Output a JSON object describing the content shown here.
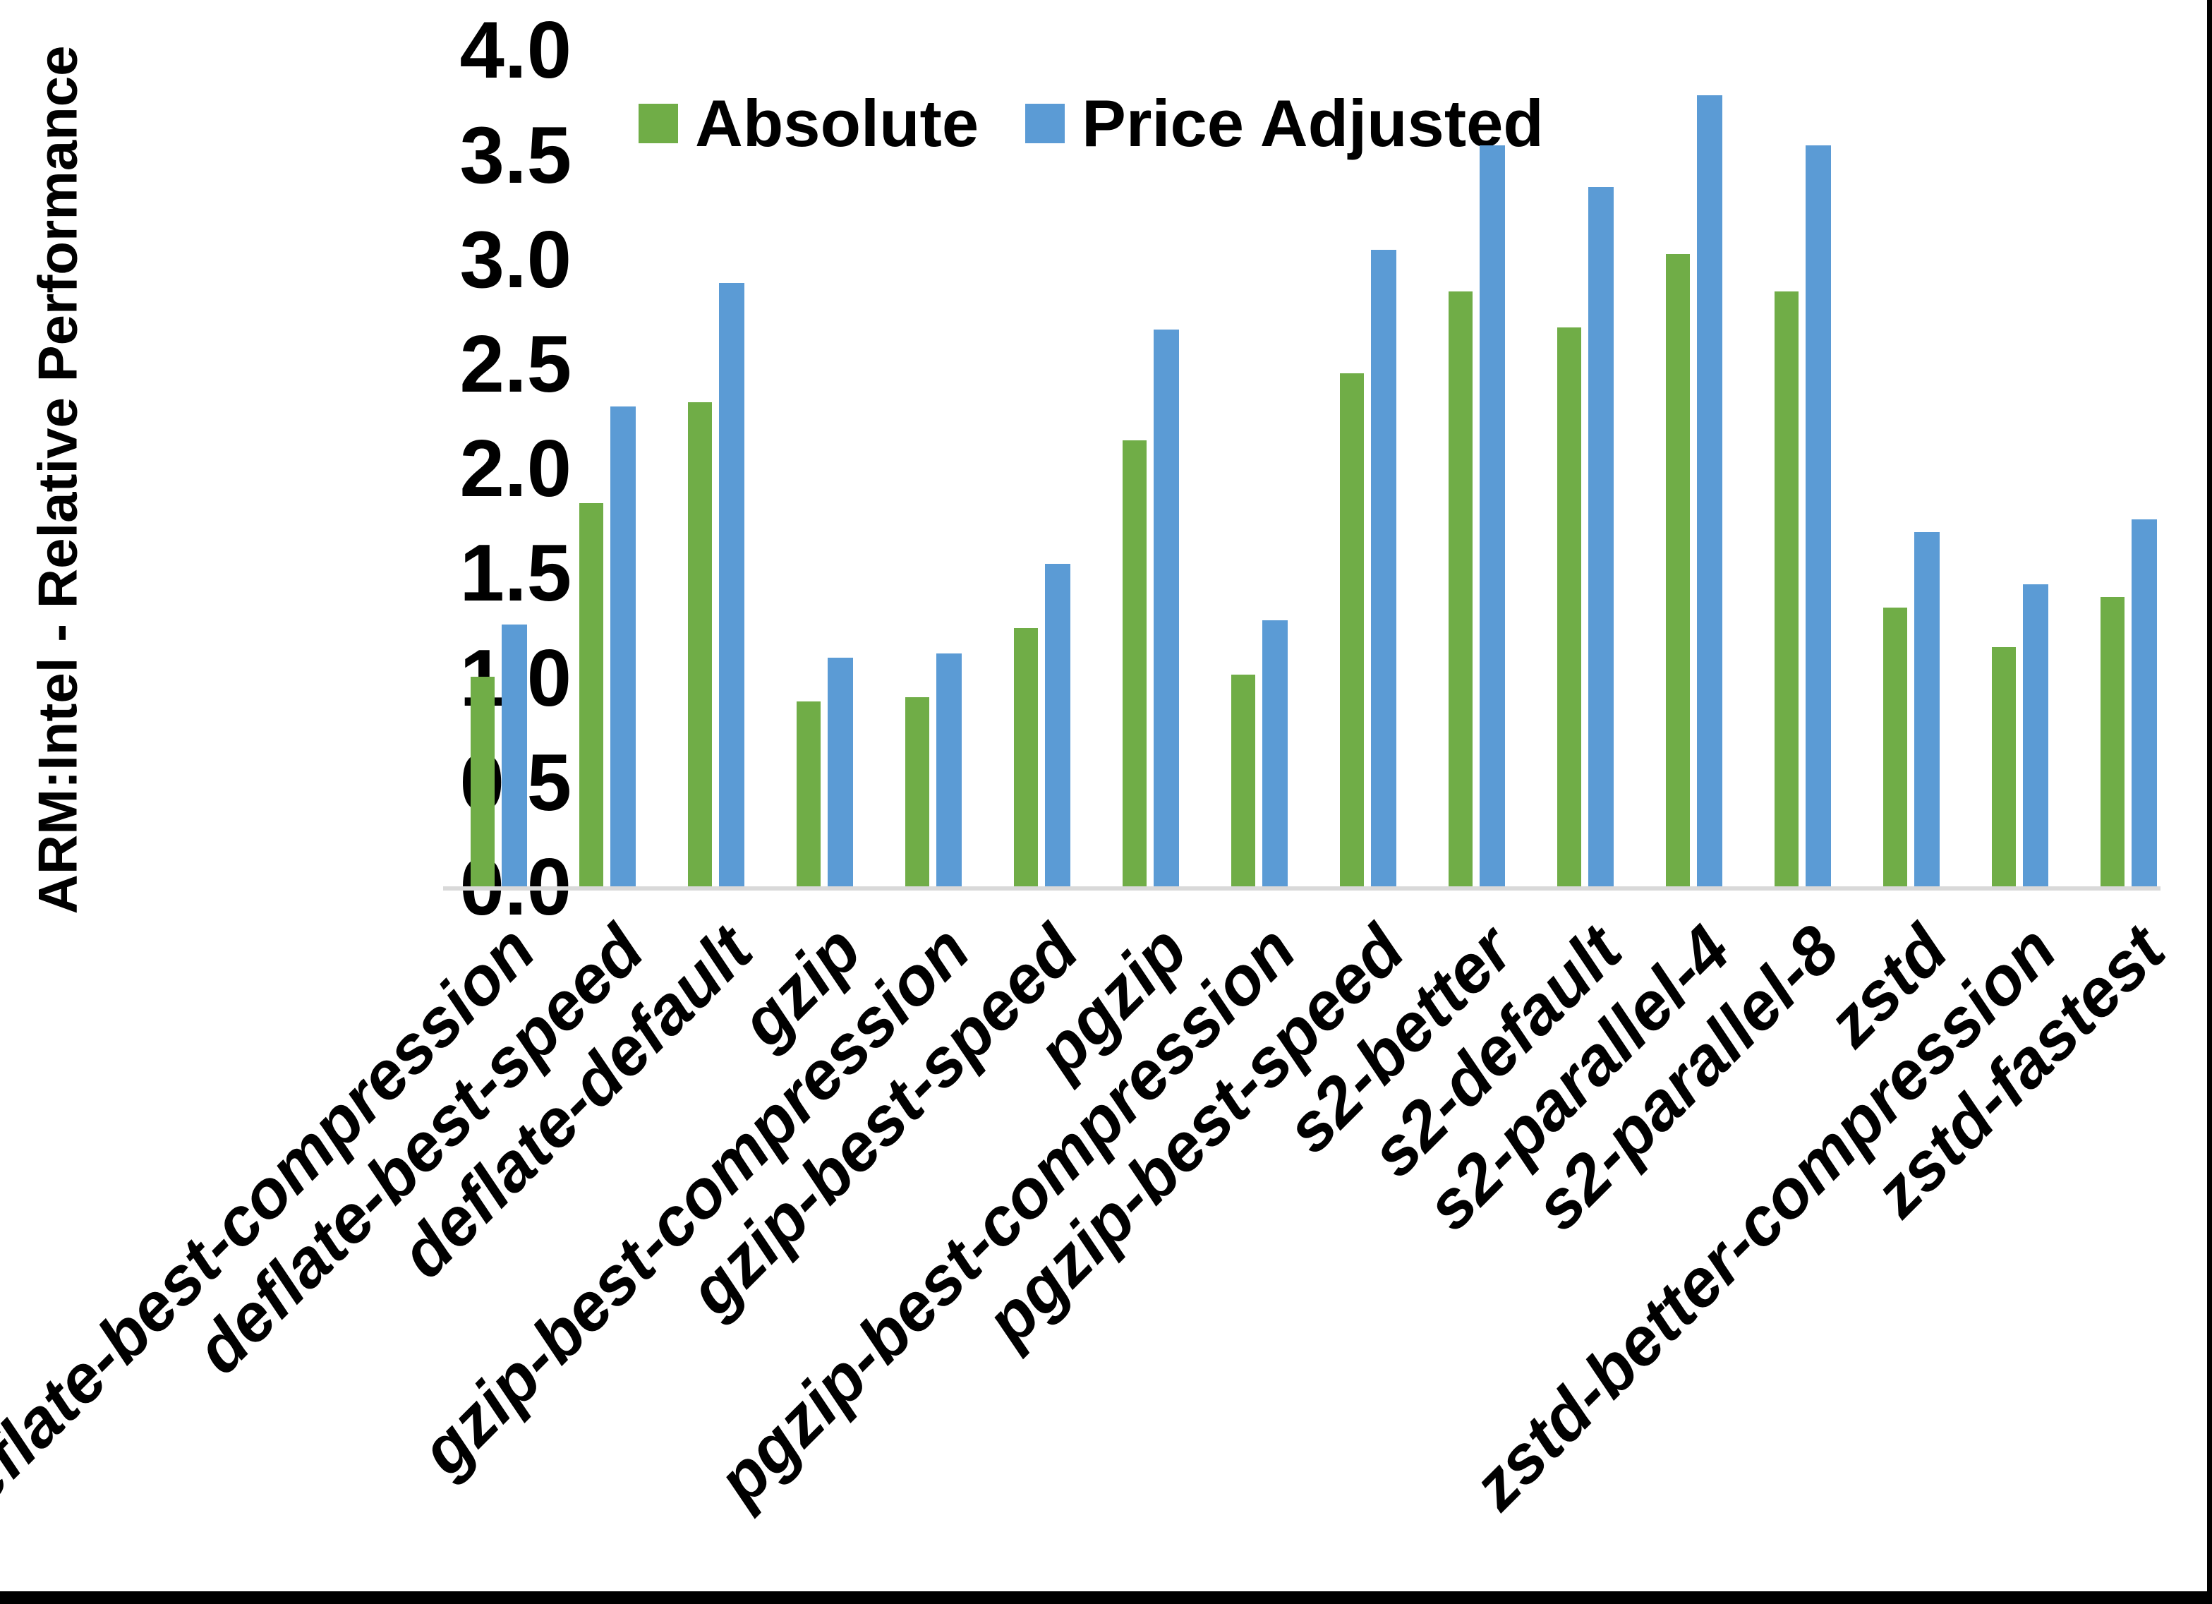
{
  "chart_data": {
    "type": "bar",
    "title": "",
    "xlabel": "",
    "ylabel": "ARM:Intel - Relative Performance",
    "ylim": [
      0.0,
      4.0
    ],
    "ytick_step": 0.5,
    "yticks": [
      "0.0",
      "0.5",
      "1.0",
      "1.5",
      "2.0",
      "2.5",
      "3.0",
      "3.5",
      "4.0"
    ],
    "grid": false,
    "legend_position": "top-center",
    "categories": [
      "deflate-best-compression",
      "deflate-best-speed",
      "deflate-default",
      "gzip",
      "gzip-best-compression",
      "gzip-best-speed",
      "pgzip",
      "pgzip-best-compression",
      "pgzip-best-speed",
      "s2-better",
      "s2-default",
      "s2-parallel-4",
      "s2-parallel-8",
      "zstd",
      "zstd-better-compression",
      "zstd-fastest"
    ],
    "series": [
      {
        "name": "Absolute",
        "color": "#70AD47",
        "values": [
          1.01,
          1.84,
          2.32,
          0.89,
          0.91,
          1.24,
          2.14,
          1.02,
          2.46,
          2.85,
          2.68,
          3.03,
          2.85,
          1.34,
          1.15,
          1.39
        ]
      },
      {
        "name": "Price Adjusted",
        "color": "#5B9BD5",
        "values": [
          1.26,
          2.3,
          2.89,
          1.1,
          1.12,
          1.55,
          2.67,
          1.28,
          3.05,
          3.55,
          3.35,
          3.79,
          3.55,
          1.7,
          1.45,
          1.76
        ]
      }
    ],
    "colors": {
      "axis_line": "#d9d9d9",
      "text": "#000000",
      "background": "#ffffff",
      "frame_border": "#000000"
    }
  }
}
